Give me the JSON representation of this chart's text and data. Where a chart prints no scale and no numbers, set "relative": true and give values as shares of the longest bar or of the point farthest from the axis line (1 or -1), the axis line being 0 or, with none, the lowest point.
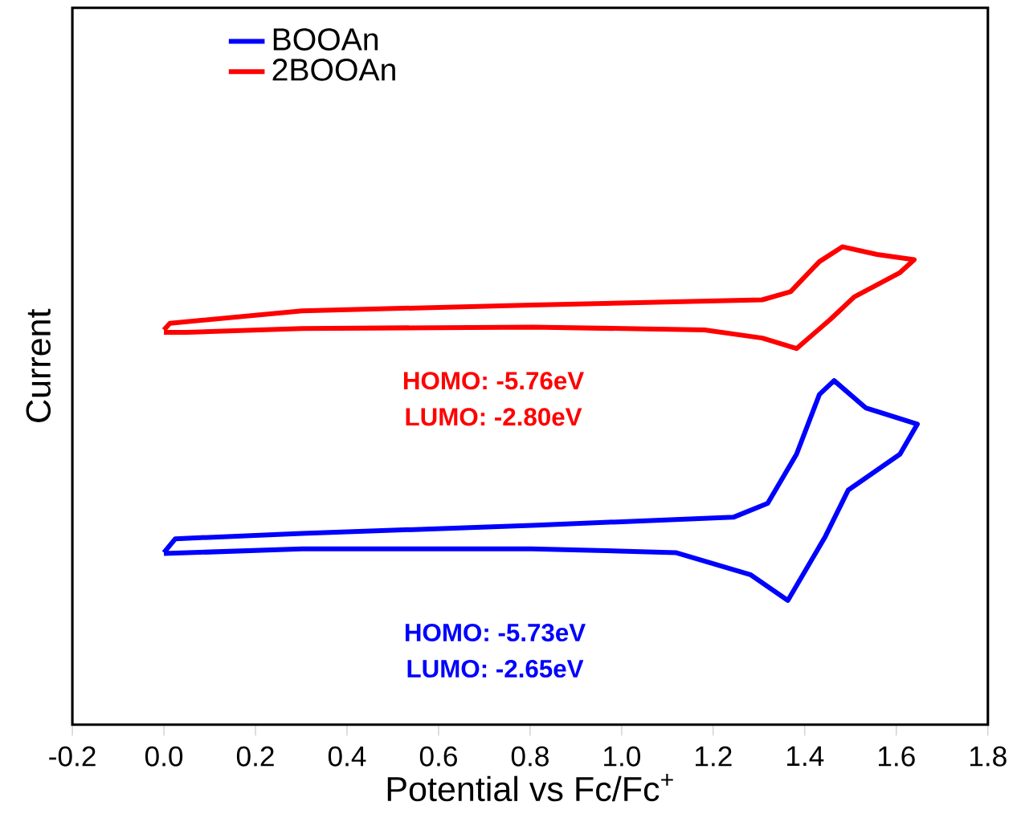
{
  "chart_data": {
    "type": "line",
    "relative": true,
    "xlabel": "Potential vs Fc/Fc$^{+}$",
    "ylabel": "Current",
    "xlim": [
      -0.2,
      1.8
    ],
    "xticks": [
      -0.2,
      {
        "value": 0,
        "label": "0.0"
      },
      0.2,
      0.4,
      0.6,
      0.8,
      {
        "value": 1,
        "label": "1.0"
      },
      1.2,
      1.4,
      1.6,
      1.8
    ],
    "legend": "top left",
    "grid": false,
    "marker": "none",
    "line_style": "solid",
    "annotations": [
      "HOMO: -5.76eV",
      "LUMO: -2.80eV",
      "HOMO: -5.73eV",
      "LUMO: -2.65eV"
    ],
    "series": [
      {
        "name": "BOOAn",
        "color": "#0000ff",
        "x": [
          0.0,
          0.025,
          0.302,
          0.804,
          1.244,
          1.319,
          1.382,
          1.432,
          1.464,
          1.533,
          1.646,
          1.608,
          1.495,
          1.445,
          1.363,
          1.281,
          1.118,
          0.804,
          0.302,
          0.0
        ],
        "values": [
          0.36,
          0.389,
          0.4,
          0.417,
          0.434,
          0.463,
          0.566,
          0.691,
          0.72,
          0.663,
          0.629,
          0.566,
          0.491,
          0.394,
          0.26,
          0.314,
          0.36,
          0.368,
          0.368,
          0.358
        ]
      },
      {
        "name": "2BOOAn",
        "color": "#ff0000",
        "x": [
          0.0,
          0.013,
          0.302,
          0.804,
          1.307,
          1.369,
          1.432,
          1.482,
          1.558,
          1.639,
          1.608,
          1.508,
          1.457,
          1.382,
          1.307,
          1.181,
          0.804,
          0.302,
          0.05,
          0.0
        ],
        "values": [
          0.826,
          0.84,
          0.866,
          0.878,
          0.889,
          0.906,
          0.969,
          1.0,
          0.984,
          0.973,
          0.946,
          0.895,
          0.849,
          0.787,
          0.809,
          0.826,
          0.832,
          0.829,
          0.821,
          0.821
        ]
      }
    ]
  }
}
